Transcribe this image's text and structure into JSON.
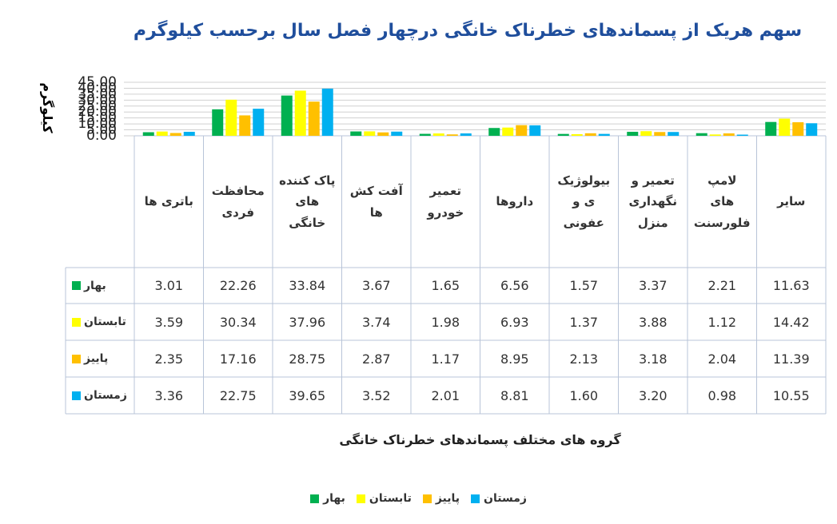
{
  "chart_data": {
    "type": "bar",
    "title": "سهم هریک از پسماندهای خطرناک خانگی درچهار فصل سال برحسب کیلوگرم",
    "y_label": "کیلوگرم",
    "x_label": "گروه های مختلف پسماندهای خطرناک خانگی",
    "categories": [
      "باتری ها",
      "محافظت فردی",
      "پاک کننده های خانگی",
      "آفت کش ها",
      "تعمیر خودرو",
      "داروها",
      "بیولوژیک ی و عفونی",
      "تعمیر و نگهداری منزل",
      "لامپ های فلورسنت",
      "سایر"
    ],
    "series": [
      {
        "name": "بهار",
        "color": "#00b050",
        "values": [
          3.01,
          22.26,
          33.84,
          3.67,
          1.65,
          6.56,
          1.57,
          3.37,
          2.21,
          11.63
        ],
        "value_labels": [
          "3.01",
          "22.26",
          "33.84",
          "3.67",
          "1.65",
          "6.56",
          "1.57",
          "3.37",
          "2.21",
          "11.63"
        ]
      },
      {
        "name": "تابستان",
        "color": "#ffff00",
        "values": [
          3.59,
          30.34,
          37.96,
          3.74,
          1.98,
          6.93,
          1.37,
          3.88,
          1.12,
          14.42
        ],
        "value_labels": [
          "3.59",
          "30.34",
          "37.96",
          "3.74",
          "1.98",
          "6.93",
          "1.37",
          "3.88",
          "1.12",
          "14.42"
        ]
      },
      {
        "name": "پاییز",
        "color": "#ffc000",
        "values": [
          2.35,
          17.16,
          28.75,
          2.87,
          1.17,
          8.95,
          2.13,
          3.18,
          2.04,
          11.39
        ],
        "value_labels": [
          "2.35",
          "17.16",
          "28.75",
          "2.87",
          "1.17",
          "8.95",
          "2.13",
          "3.18",
          "2.04",
          "11.39"
        ]
      },
      {
        "name": "زمستان",
        "color": "#00b0f0",
        "values": [
          3.36,
          22.75,
          39.65,
          3.52,
          2.01,
          8.81,
          1.6,
          3.2,
          0.98,
          10.55
        ],
        "value_labels": [
          "3.36",
          "22.75",
          "39.65",
          "3.52",
          "2.01",
          "8.81",
          "1.60",
          "3.20",
          "0.98",
          "10.55"
        ]
      }
    ],
    "ylim": [
      0,
      45
    ],
    "yticks": [
      {
        "value": 0,
        "label": "0.00"
      },
      {
        "value": 5,
        "label": "5.00"
      },
      {
        "value": 10,
        "label": "10.00"
      },
      {
        "value": 15,
        "label": "15.00"
      },
      {
        "value": 20,
        "label": "20.00"
      },
      {
        "value": 25,
        "label": "25.00"
      },
      {
        "value": 30,
        "label": "30.00"
      },
      {
        "value": 35,
        "label": "35.00"
      },
      {
        "value": 40,
        "label": "40.00"
      },
      {
        "value": 45,
        "label": "45.00"
      }
    ],
    "grid": true
  }
}
